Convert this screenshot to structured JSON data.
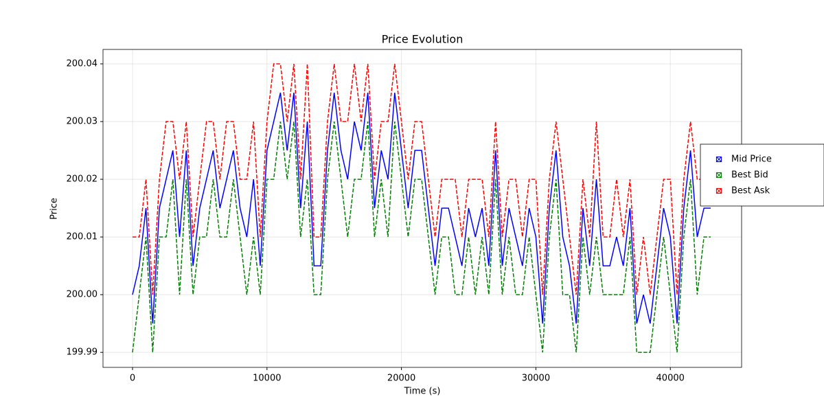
{
  "chart_data": {
    "type": "line",
    "title": "Price Evolution",
    "x_label": "Time (s)",
    "y_label": "Price",
    "x": [
      0,
      500,
      1000,
      1500,
      2000,
      2500,
      3000,
      3500,
      4000,
      4500,
      5000,
      5500,
      6000,
      6500,
      7000,
      7500,
      8000,
      8500,
      9000,
      9500,
      10000,
      10500,
      11000,
      11500,
      12000,
      12500,
      13000,
      13500,
      14000,
      14500,
      15000,
      15500,
      16000,
      16500,
      17000,
      17500,
      18000,
      18500,
      19000,
      19500,
      20000,
      20500,
      21000,
      21500,
      22000,
      22500,
      23000,
      23500,
      24000,
      24500,
      25000,
      25500,
      26000,
      26500,
      27000,
      27500,
      28000,
      28500,
      29000,
      29500,
      30000,
      30500,
      31000,
      31500,
      32000,
      32500,
      33000,
      33500,
      34000,
      34500,
      35000,
      35500,
      36000,
      36500,
      37000,
      37500,
      38000,
      38500,
      39000,
      39500,
      40000,
      40500,
      41000,
      41500,
      42000,
      42500,
      43000
    ],
    "series": [
      {
        "name": "Mid Price",
        "color": "#0000ff",
        "linestyle": "solid",
        "values": [
          200.0,
          200.005,
          200.015,
          199.995,
          200.015,
          200.02,
          200.025,
          200.01,
          200.025,
          200.005,
          200.015,
          200.02,
          200.025,
          200.015,
          200.02,
          200.025,
          200.015,
          200.01,
          200.02,
          200.005,
          200.025,
          200.03,
          200.035,
          200.025,
          200.035,
          200.015,
          200.03,
          200.005,
          200.005,
          200.025,
          200.035,
          200.025,
          200.02,
          200.03,
          200.025,
          200.035,
          200.015,
          200.025,
          200.02,
          200.035,
          200.025,
          200.015,
          200.025,
          200.025,
          200.015,
          200.005,
          200.015,
          200.015,
          200.01,
          200.005,
          200.015,
          200.01,
          200.015,
          200.005,
          200.025,
          200.005,
          200.015,
          200.01,
          200.005,
          200.015,
          200.01,
          199.995,
          200.015,
          200.025,
          200.01,
          200.005,
          199.995,
          200.015,
          200.005,
          200.02,
          200.005,
          200.005,
          200.01,
          200.005,
          200.015,
          199.995,
          200.0,
          199.995,
          200.005,
          200.015,
          200.01,
          199.995,
          200.015,
          200.025,
          200.01,
          200.015,
          200.015
        ]
      },
      {
        "name": "Best Bid",
        "color": "#008000",
        "linestyle": "dashed",
        "values": [
          199.99,
          200.0,
          200.01,
          199.99,
          200.01,
          200.01,
          200.02,
          200.0,
          200.02,
          200.0,
          200.01,
          200.01,
          200.02,
          200.01,
          200.01,
          200.02,
          200.01,
          200.0,
          200.01,
          200.0,
          200.02,
          200.02,
          200.03,
          200.02,
          200.03,
          200.01,
          200.02,
          200.0,
          200.0,
          200.02,
          200.03,
          200.02,
          200.01,
          200.02,
          200.02,
          200.03,
          200.01,
          200.02,
          200.01,
          200.03,
          200.02,
          200.01,
          200.02,
          200.02,
          200.01,
          200.0,
          200.01,
          200.01,
          200.0,
          200.0,
          200.01,
          200.0,
          200.01,
          200.0,
          200.02,
          200.0,
          200.01,
          200.0,
          200.0,
          200.01,
          200.0,
          199.99,
          200.01,
          200.02,
          200.0,
          200.0,
          199.99,
          200.01,
          200.0,
          200.01,
          200.0,
          200.0,
          200.0,
          200.0,
          200.01,
          199.99,
          199.99,
          199.99,
          200.0,
          200.01,
          200.0,
          199.99,
          200.01,
          200.02,
          200.0,
          200.01,
          200.01
        ]
      },
      {
        "name": "Best Ask",
        "color": "#ff0000",
        "linestyle": "dashed",
        "values": [
          200.01,
          200.01,
          200.02,
          200.0,
          200.02,
          200.03,
          200.03,
          200.02,
          200.03,
          200.01,
          200.02,
          200.03,
          200.03,
          200.02,
          200.03,
          200.03,
          200.02,
          200.02,
          200.03,
          200.01,
          200.03,
          200.04,
          200.04,
          200.03,
          200.04,
          200.02,
          200.04,
          200.01,
          200.01,
          200.03,
          200.04,
          200.03,
          200.03,
          200.04,
          200.03,
          200.04,
          200.02,
          200.03,
          200.03,
          200.04,
          200.03,
          200.02,
          200.03,
          200.03,
          200.02,
          200.01,
          200.02,
          200.02,
          200.02,
          200.01,
          200.02,
          200.02,
          200.02,
          200.01,
          200.03,
          200.01,
          200.02,
          200.02,
          200.01,
          200.02,
          200.02,
          200.0,
          200.02,
          200.03,
          200.02,
          200.01,
          200.0,
          200.02,
          200.01,
          200.03,
          200.01,
          200.01,
          200.02,
          200.01,
          200.02,
          200.0,
          200.01,
          200.0,
          200.01,
          200.02,
          200.02,
          200.0,
          200.02,
          200.03,
          200.02,
          200.02,
          200.02
        ]
      }
    ],
    "xlim": [
      -2196,
      45300
    ],
    "xticks": [
      0,
      10000,
      20000,
      30000,
      40000
    ],
    "ylim": [
      199.9874,
      200.0425
    ],
    "yticks": [
      199.99,
      {
        "value": 200,
        "label": "200.00"
      },
      200.01,
      200.02,
      200.03,
      200.04
    ],
    "grid": true,
    "legend": "center right"
  }
}
